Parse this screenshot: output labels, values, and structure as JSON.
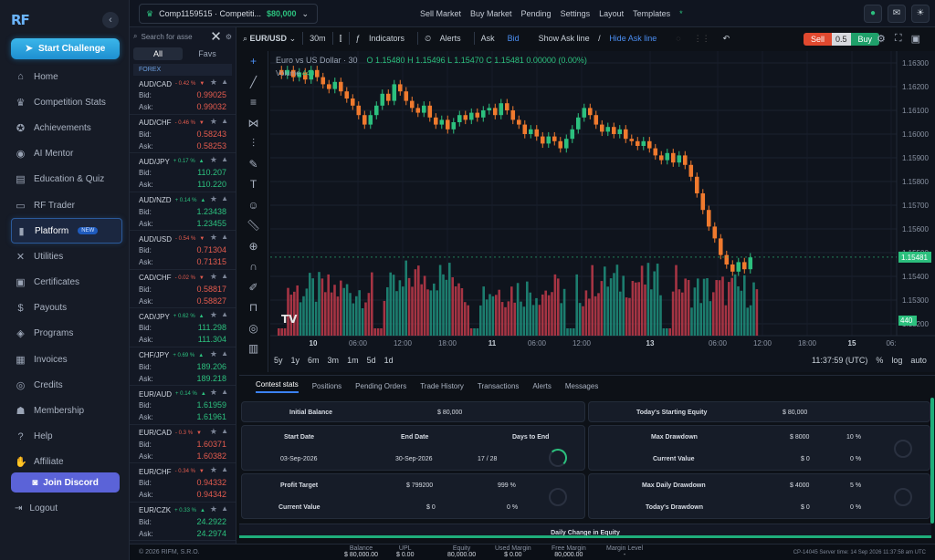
{
  "sidebar": {
    "logo": "RF",
    "challenge_btn": "Start Challenge",
    "items": [
      {
        "label": "Home",
        "icon": "home-icon",
        "glyph": "⌂"
      },
      {
        "label": "Competition Stats",
        "icon": "trophy-icon",
        "glyph": "♛"
      },
      {
        "label": "Achievements",
        "icon": "award-icon",
        "glyph": "✪"
      },
      {
        "label": "AI Mentor",
        "icon": "ai-icon",
        "glyph": "◉"
      },
      {
        "label": "Education & Quiz",
        "icon": "book-icon",
        "glyph": "▤"
      },
      {
        "label": "RF Trader",
        "icon": "trader-icon",
        "glyph": "▭"
      },
      {
        "label": "Platform",
        "icon": "platform-icon",
        "glyph": "▮",
        "active": true,
        "badge": "NEW"
      },
      {
        "label": "Utilities",
        "icon": "tools-icon",
        "glyph": "✕"
      },
      {
        "label": "Certificates",
        "icon": "certificate-icon",
        "glyph": "▣"
      },
      {
        "label": "Payouts",
        "icon": "payout-icon",
        "glyph": "$"
      },
      {
        "label": "Programs",
        "icon": "programs-icon",
        "glyph": "◈"
      },
      {
        "label": "Invoices",
        "icon": "invoice-icon",
        "glyph": "▦"
      },
      {
        "label": "Credits",
        "icon": "credits-icon",
        "glyph": "◎"
      },
      {
        "label": "Membership",
        "icon": "membership-icon",
        "glyph": "☗"
      },
      {
        "label": "Help",
        "icon": "help-icon",
        "glyph": "?"
      },
      {
        "label": "Affiliate",
        "icon": "affiliate-icon",
        "glyph": "✋"
      }
    ],
    "discord_btn": "Join Discord",
    "logout": "Logout",
    "copyright": "© 2026 RIFM, S.R.O."
  },
  "topbar": {
    "account": "Comp1159515 · Competiti...",
    "balance": "$80,000",
    "menu": [
      "Sell Market",
      "Buy Market",
      "Pending",
      "Settings",
      "Layout",
      "Templates"
    ],
    "templates_dot": "*"
  },
  "watchlist": {
    "search_placeholder": "Search for asse",
    "tabs": [
      "All",
      "Favs"
    ],
    "group": "FOREX",
    "bid_label": "Bid:",
    "ask_label": "Ask:",
    "pairs": [
      {
        "sym": "AUD/CAD",
        "chg": "- 0.42 %",
        "dir": "neg",
        "bid": "0.99025",
        "ask": "0.99032"
      },
      {
        "sym": "AUD/CHF",
        "chg": "- 0.46 %",
        "dir": "neg",
        "bid": "0.58243",
        "ask": "0.58253"
      },
      {
        "sym": "AUD/JPY",
        "chg": "+ 0.17 %",
        "dir": "pos",
        "bid": "110.207",
        "ask": "110.220"
      },
      {
        "sym": "AUD/NZD",
        "chg": "+ 0.14 %",
        "dir": "pos",
        "bid": "1.23438",
        "ask": "1.23455"
      },
      {
        "sym": "AUD/USD",
        "chg": "- 0.54 %",
        "dir": "neg",
        "bid": "0.71304",
        "ask": "0.71315"
      },
      {
        "sym": "CAD/CHF",
        "chg": "- 0.02 %",
        "dir": "neg",
        "bid": "0.58817",
        "ask": "0.58827"
      },
      {
        "sym": "CAD/JPY",
        "chg": "+ 0.62 %",
        "dir": "pos",
        "bid": "111.298",
        "ask": "111.304"
      },
      {
        "sym": "CHF/JPY",
        "chg": "+ 0.69 %",
        "dir": "pos",
        "bid": "189.206",
        "ask": "189.218"
      },
      {
        "sym": "EUR/AUD",
        "chg": "+ 0.14 %",
        "dir": "pos",
        "bid": "1.61959",
        "ask": "1.61961"
      },
      {
        "sym": "EUR/CAD",
        "chg": "- 0.3 %",
        "dir": "neg",
        "bid": "1.60371",
        "ask": "1.60382"
      },
      {
        "sym": "EUR/CHF",
        "chg": "- 0.34 %",
        "dir": "neg",
        "bid": "0.94332",
        "ask": "0.94342"
      },
      {
        "sym": "EUR/CZK",
        "chg": "+ 0.33 %",
        "dir": "pos",
        "bid": "24.2922",
        "ask": "24.2974"
      }
    ]
  },
  "chart_toolbar": {
    "symbol": "EUR/USD",
    "interval": "30m",
    "indicators": "Indicators",
    "alerts": "Alerts",
    "ask": "Ask",
    "bid": "Bid",
    "show_ask": "Show Ask line",
    "hide_ask": "Hide Ask line",
    "sell": "Sell",
    "spread": "0.5",
    "buy": "Buy"
  },
  "chart": {
    "title": "Euro vs US Dollar · 30",
    "ohlc": "O 1.15480  H 1.15496  L 1.15470  C 1.15481  0.00000 (0.00%)",
    "volume_label": "Volume",
    "volume_value": "440",
    "last_price": "1.15481",
    "last_volume": "440",
    "price_ticks": [
      "1.16300",
      "1.16200",
      "1.16100",
      "1.16000",
      "1.15900",
      "1.15800",
      "1.15700",
      "1.15600",
      "1.15500",
      "1.15400",
      "1.15300",
      "1.15200"
    ],
    "time_ticks": [
      "10",
      "06:00",
      "12:00",
      "18:00",
      "11",
      "06:00",
      "12:00",
      "13",
      "06:00",
      "12:00",
      "18:00",
      "15",
      "06:"
    ],
    "ranges": [
      "5y",
      "1y",
      "6m",
      "3m",
      "1m",
      "5d",
      "1d"
    ],
    "clock": "11:37:59 (UTC)",
    "scale_opts": [
      "%",
      "log",
      "auto"
    ]
  },
  "chart_data": {
    "type": "candlestick",
    "title": "Euro vs US Dollar · 30",
    "ylim": [
      1.1515,
      1.1635
    ],
    "ohlc_close": [
      1.1625,
      1.1627,
      1.1624,
      1.1626,
      1.1623,
      1.1627,
      1.1624,
      1.1621,
      1.1619,
      1.1622,
      1.1618,
      1.1615,
      1.1612,
      1.1608,
      1.1604,
      1.1608,
      1.1612,
      1.1617,
      1.1614,
      1.1621,
      1.1618,
      1.1614,
      1.1611,
      1.1609,
      1.1612,
      1.1607,
      1.1604,
      1.1606,
      1.1602,
      1.1605,
      1.1608,
      1.1606,
      1.1609,
      1.1607,
      1.161,
      1.1611,
      1.1608,
      1.1613,
      1.161,
      1.1606,
      1.1604,
      1.16,
      1.1602,
      1.1599,
      1.1596,
      1.1599,
      1.1597,
      1.1594,
      1.1598,
      1.1602,
      1.1607,
      1.1611,
      1.1608,
      1.1604,
      1.1601,
      1.1603,
      1.16,
      1.1602,
      1.1598,
      1.1597,
      1.1595,
      1.1597,
      1.1594,
      1.1591,
      1.1589,
      1.1592,
      1.1588,
      1.1591,
      1.1587,
      1.1582,
      1.1575,
      1.1568,
      1.1561,
      1.1556,
      1.1549,
      1.1545,
      1.1542,
      1.1546,
      1.1543,
      1.1548
    ]
  },
  "bottom": {
    "tabs": [
      "Contest stats",
      "Positions",
      "Pending Orders",
      "Trade History",
      "Transactions",
      "Alerts",
      "Messages"
    ],
    "initial_balance_label": "Initial Balance",
    "initial_balance": "$ 80,000",
    "start_date_label": "Start Date",
    "start_date": "03-Sep-2026",
    "end_date_label": "End Date",
    "end_date": "30-Sep-2026",
    "days_to_end_label": "Days to End",
    "days_to_end": "17 / 28",
    "profit_target_label": "Profit Target",
    "profit_target": "$ 799200",
    "profit_target_pct": "999 %",
    "current_value_label": "Current Value",
    "current_value": "$ 0",
    "current_value_pct": "0 %",
    "starting_equity_label": "Today's Starting Equity",
    "starting_equity": "$ 80,000",
    "max_drawdown_label": "Max Drawdown",
    "max_drawdown": "$ 8000",
    "max_drawdown_pct": "10 %",
    "dd_current_label": "Current Value",
    "dd_current": "$ 0",
    "dd_current_pct": "0 %",
    "max_daily_label": "Max Daily Drawdown",
    "max_daily": "$ 4000",
    "max_daily_pct": "5 %",
    "today_dd_label": "Today's Drawdown",
    "today_dd": "$ 0",
    "today_dd_pct": "0 %",
    "daily_change": "Daily Change in Equity"
  },
  "statusbar": {
    "items": [
      {
        "label": "Balance",
        "value": "$ 80,000.00"
      },
      {
        "label": "UPL",
        "value": "$ 0.00"
      },
      {
        "label": "Equity",
        "value": "80,000.00"
      },
      {
        "label": "Used Margin",
        "value": "$ 0.00"
      },
      {
        "label": "Free Margin",
        "value": "80,000.00"
      },
      {
        "label": "Margin Level",
        "value": "-"
      }
    ],
    "server": "CP-14045 Server time: 14 Sep 2026 11:37:58 am UTC"
  },
  "colors": {
    "accent": "#3b82f6",
    "up": "#2cc07e",
    "down": "#e45b4e",
    "sell": "#e0492f",
    "buy": "#1fa06a"
  }
}
